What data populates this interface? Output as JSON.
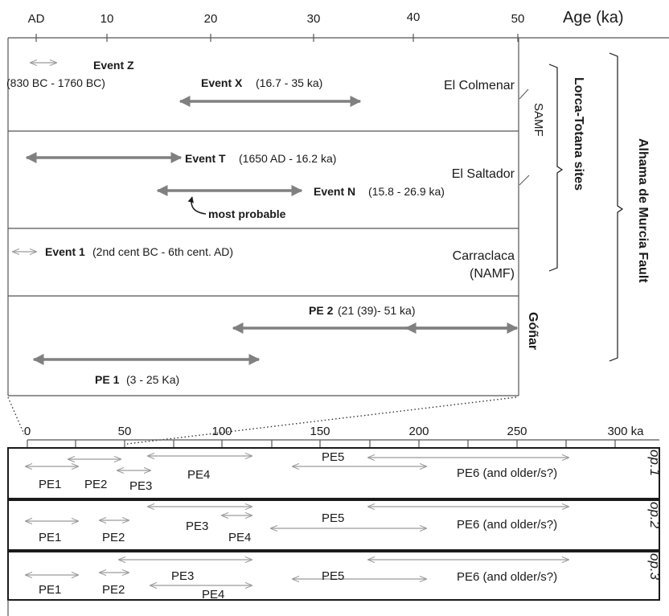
{
  "upper_axis": {
    "ticks": [
      "AD",
      "10",
      "20",
      "30",
      "40",
      "50"
    ],
    "unit_label": "Age (ka)"
  },
  "events": {
    "event_z": {
      "name": "Event Z",
      "range": "(830 BC - 1760 BC)"
    },
    "event_x": {
      "name": "Event X",
      "range": "(16.7 - 35 ka)"
    },
    "event_t": {
      "name": "Event T",
      "range": "(1650 AD - 16.2 ka)"
    },
    "event_n": {
      "name": "Event N",
      "range": "(15.8 - 26.9 ka)"
    },
    "most_probable": "most probable",
    "event_1": {
      "name": "Event 1",
      "range": "(2nd cent BC - 6th cent. AD)"
    },
    "pe2": {
      "name": "PE 2",
      "range": "(21 (39)- 51  ka)"
    },
    "pe1": {
      "name": "PE 1",
      "range": "(3 - 25 Ka)"
    }
  },
  "sites": {
    "el_colmenar": "El Colmenar",
    "samf": "SAMF",
    "el_saltador": "El Saltador",
    "carraclaca": "Carraclaca",
    "namf": "(NAMF)",
    "gonar": "Góñar",
    "lorca_totana": "Lorca-Totana sites",
    "alhama": "Alhama de Murcia Fault"
  },
  "lower_axis": {
    "ticks": [
      "0",
      "50",
      "100",
      "150",
      "200",
      "250",
      "300 ka"
    ]
  },
  "options": [
    {
      "label": "op.1",
      "events": {
        "pe1": "PE1",
        "pe2": "PE2",
        "pe3": "PE3",
        "pe4": "PE4",
        "pe5": "PE5",
        "pe6": "PE6 (and older/s?)"
      }
    },
    {
      "label": "op.2",
      "events": {
        "pe1": "PE1",
        "pe2": "PE2",
        "pe3": "PE3",
        "pe4": "PE4",
        "pe5": "PE5",
        "pe6": "PE6 (and older/s?)"
      }
    },
    {
      "label": "op.3",
      "events": {
        "pe1": "PE1",
        "pe2": "PE2",
        "pe3": "PE3",
        "pe4": "PE4",
        "pe5": "PE5",
        "pe6": "PE6 (and older/s?)"
      }
    }
  ],
  "colors": {
    "arrow_dark": "#808080",
    "arrow_light": "#9a9a9a",
    "line": "#555555",
    "text": "#1a1a1a"
  }
}
